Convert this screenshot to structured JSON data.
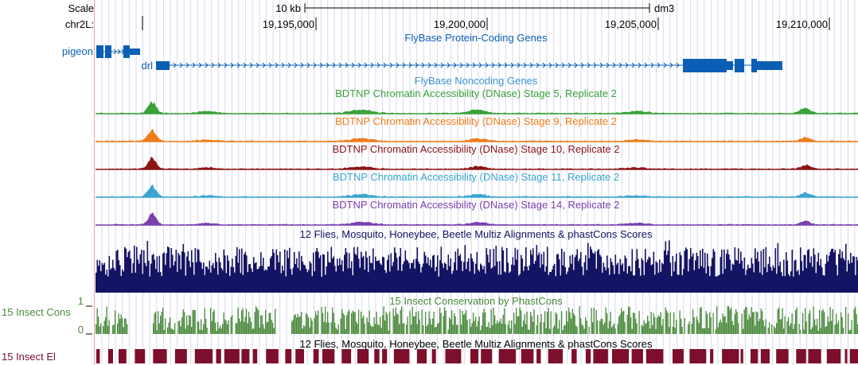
{
  "ruler": {
    "scale_label": "Scale",
    "scale_bar_label": "10 kb",
    "assembly": "dm3",
    "chrom_label": "chr2L:",
    "ticks": [
      "19,195,000",
      "19,200,000",
      "19,205,000",
      "19,210,000"
    ]
  },
  "colors": {
    "gene_blue": "#0a5fb4",
    "noncoding_blue": "#3d94d0",
    "green_dnase": "#3aa23a",
    "orange_dnase": "#ef7d1a",
    "darkred_dnase": "#8b1414",
    "skyblue_dnase": "#3aa5d0",
    "purple_dnase": "#7b3fae",
    "multiz_navy": "#141464",
    "cons_green": "#4a8a3c",
    "elements_maroon": "#7d0f2c",
    "guide_lines": "#d8d8f2",
    "left_edge": "#f4a0a0"
  },
  "genes": {
    "track_title": "FlyBase Protein-Coding Genes",
    "items": [
      {
        "name": "pigeon",
        "strand": "+"
      },
      {
        "name": "drl",
        "strand": "+"
      }
    ]
  },
  "noncoding": {
    "track_title": "FlyBase Noncoding Genes"
  },
  "dnase_tracks": [
    {
      "title": "BDTNP Chromatin Accessibility (DNase) Stage 5, Replicate 2",
      "color": "#3aa23a"
    },
    {
      "title": "BDTNP Chromatin Accessibility (DNase) Stage 9, Replicate 2",
      "color": "#ef7d1a"
    },
    {
      "title": "BDTNP Chromatin Accessibility (DNase) Stage 10, Replicate 2",
      "color": "#8b1414"
    },
    {
      "title": "BDTNP Chromatin Accessibility (DNase) Stage 11, Replicate 2",
      "color": "#3aa5d0"
    },
    {
      "title": "BDTNP Chromatin Accessibility (DNase) Stage 14, Replicate 2",
      "color": "#7b3fae"
    }
  ],
  "multiz": {
    "track_title": "12 Flies, Mosquito, Honeybee, Beetle Multiz Alignments & phastCons Scores"
  },
  "conservation": {
    "left_label": "15 Insect Cons",
    "track_title": "15 Insect Conservation by PhastCons",
    "axis_max": "1",
    "axis_min": "0"
  },
  "elements": {
    "left_label": "15 Insect El",
    "track_title": "12 Flies, Mosquito, Honeybee, Beetle Multiz Alignments & phastCons Scores"
  }
}
